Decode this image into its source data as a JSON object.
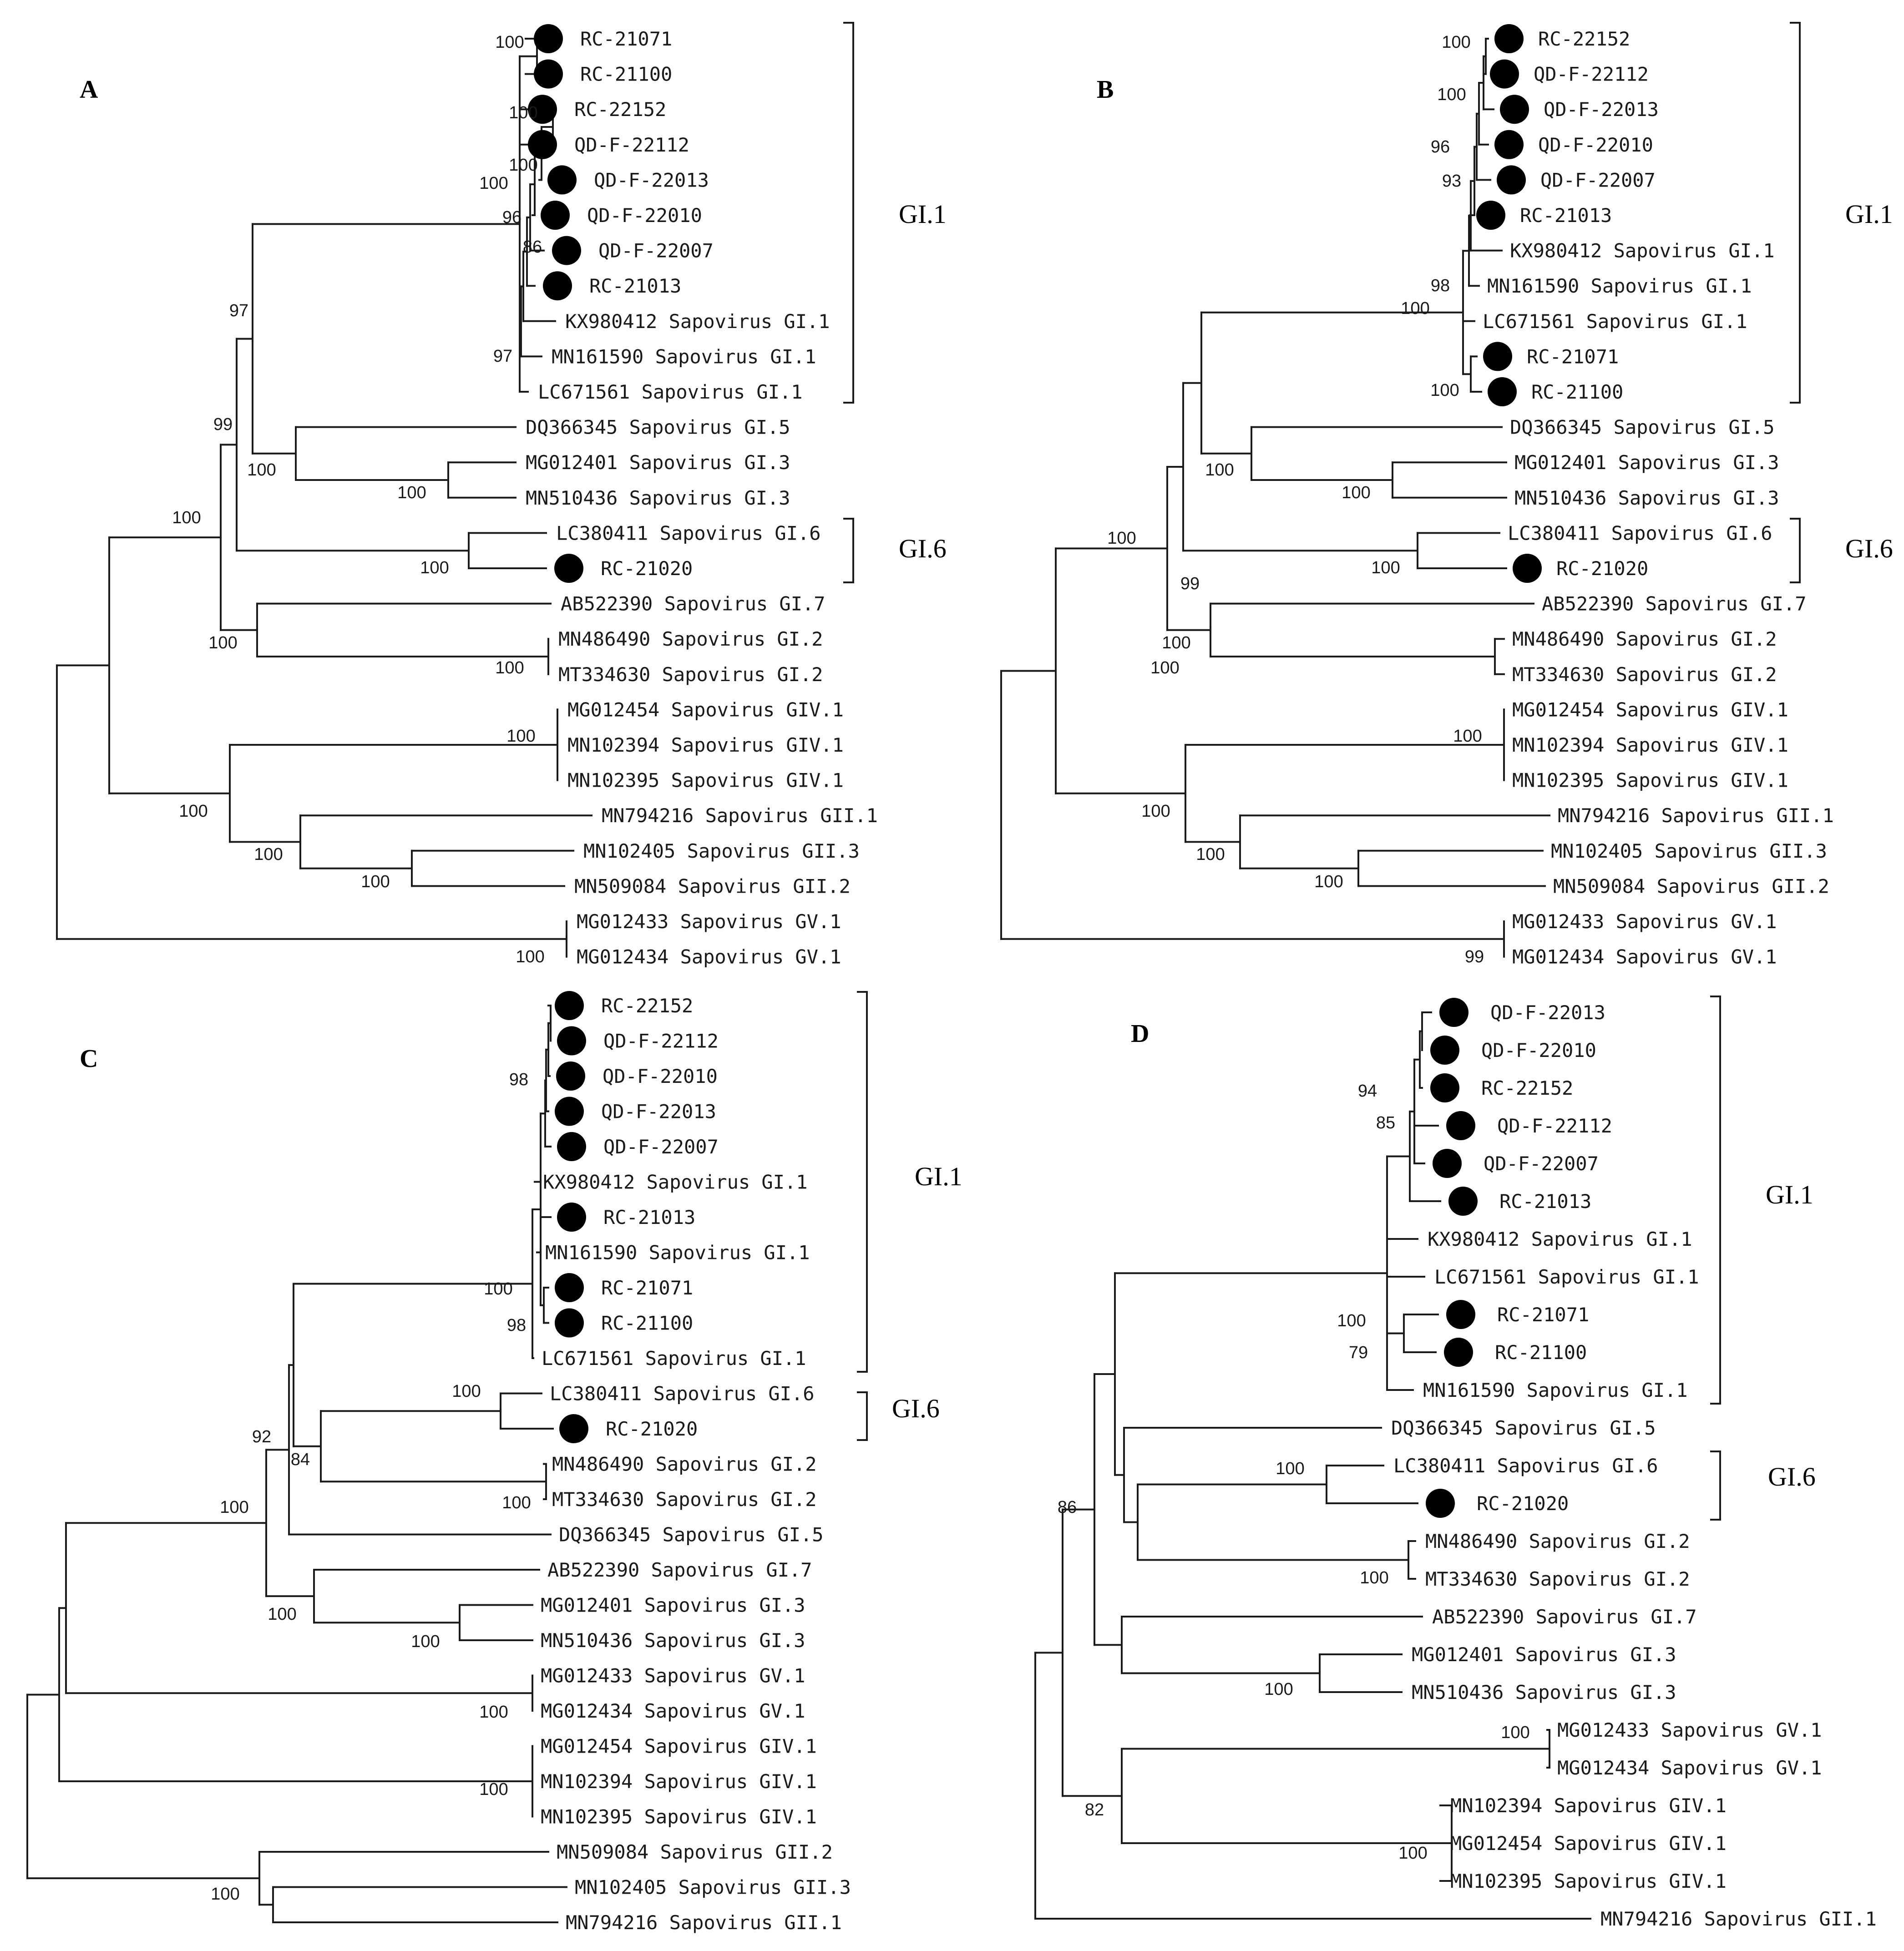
{
  "panels": [
    {
      "label": "A",
      "tips": [
        "RC-21071",
        "RC-21100",
        "RC-22152",
        "QD-F-22112",
        "QD-F-22013",
        "QD-F-22010",
        "QD-F-22007",
        "RC-21013",
        "KX980412 Sapovirus GI.1",
        "MN161590 Sapovirus GI.1",
        "LC671561 Sapovirus GI.1",
        "DQ366345 Sapovirus GI.5",
        "MG012401 Sapovirus GI.3",
        "MN510436 Sapovirus GI.3",
        "LC380411 Sapovirus GI.6",
        "RC-21020",
        "AB522390 Sapovirus GI.7",
        "MN486490 Sapovirus GI.2",
        "MT334630 Sapovirus GI.2",
        "MG012454 Sapovirus GIV.1",
        "MN102394 Sapovirus GIV.1",
        "MN102395 Sapovirus GIV.1",
        "MN794216 Sapovirus GII.1",
        "MN102405 Sapovirus GII.3",
        "MN509084 Sapovirus GII.2",
        "MG012433 Sapovirus GV.1",
        "MG012434 Sapovirus GV.1"
      ],
      "dotted_tips": [
        0,
        1,
        2,
        3,
        4,
        5,
        6,
        7,
        15
      ],
      "bootstraps": [
        "100",
        "100",
        "100",
        "100",
        "96",
        "86",
        "97",
        "97",
        "99",
        "100",
        "100",
        "100",
        "100",
        "100",
        "100",
        "100",
        "100",
        "100",
        "100",
        "100"
      ],
      "clades": [
        {
          "label": "GI.1"
        },
        {
          "label": "GI.6"
        }
      ]
    },
    {
      "label": "B",
      "tips": [
        "RC-22152",
        "QD-F-22112",
        "QD-F-22013",
        "QD-F-22010",
        "QD-F-22007",
        "RC-21013",
        "KX980412 Sapovirus GI.1",
        "MN161590 Sapovirus GI.1",
        "LC671561 Sapovirus GI.1",
        "RC-21071",
        "RC-21100",
        "DQ366345 Sapovirus GI.5",
        "MG012401 Sapovirus GI.3",
        "MN510436 Sapovirus GI.3",
        "LC380411 Sapovirus GI.6",
        "RC-21020",
        "AB522390 Sapovirus GI.7",
        "MN486490 Sapovirus GI.2",
        "MT334630 Sapovirus GI.2",
        "MG012454 Sapovirus GIV.1",
        "MN102394 Sapovirus GIV.1",
        "MN102395 Sapovirus GIV.1",
        "MN794216 Sapovirus GII.1",
        "MN102405 Sapovirus GII.3",
        "MN509084 Sapovirus GII.2",
        "MG012433 Sapovirus GV.1",
        "MG012434 Sapovirus GV.1"
      ],
      "dotted_tips": [
        0,
        1,
        2,
        3,
        4,
        5,
        9,
        10,
        15
      ],
      "bootstraps": [
        "100",
        "100",
        "96",
        "93",
        "98",
        "100",
        "100",
        "100",
        "99",
        "100",
        "100",
        "100",
        "100",
        "100",
        "100",
        "100",
        "100",
        "100",
        "99"
      ],
      "clades": [
        {
          "label": "GI.1"
        },
        {
          "label": "GI.6"
        }
      ]
    },
    {
      "label": "C",
      "tips": [
        "RC-22152",
        "QD-F-22112",
        "QD-F-22010",
        "QD-F-22013",
        "QD-F-22007",
        "KX980412 Sapovirus GI.1",
        "RC-21013",
        "MN161590 Sapovirus GI.1",
        "RC-21071",
        "RC-21100",
        "LC671561 Sapovirus GI.1",
        "LC380411 Sapovirus GI.6",
        "RC-21020",
        "MN486490 Sapovirus GI.2",
        "MT334630 Sapovirus GI.2",
        "DQ366345 Sapovirus GI.5",
        "AB522390 Sapovirus GI.7",
        "MG012401 Sapovirus GI.3",
        "MN510436 Sapovirus GI.3",
        "MG012433 Sapovirus GV.1",
        "MG012434 Sapovirus GV.1",
        "MG012454 Sapovirus GIV.1",
        "MN102394 Sapovirus GIV.1",
        "MN102395 Sapovirus GIV.1",
        "MN509084 Sapovirus GII.2",
        "MN102405 Sapovirus GII.3",
        "MN794216 Sapovirus GII.1"
      ],
      "dotted_tips": [
        0,
        1,
        2,
        3,
        4,
        6,
        8,
        9,
        12
      ],
      "bootstraps": [
        "98",
        "98",
        "100",
        "100",
        "100",
        "84",
        "92",
        "100",
        "100",
        "100",
        "100",
        "100",
        "100"
      ],
      "clades": [
        {
          "label": "GI.1"
        },
        {
          "label": "GI.6"
        }
      ]
    },
    {
      "label": "D",
      "tips": [
        "QD-F-22013",
        "QD-F-22010",
        "RC-22152",
        "QD-F-22112",
        "QD-F-22007",
        "RC-21013",
        "KX980412 Sapovirus GI.1",
        "LC671561 Sapovirus GI.1",
        "RC-21071",
        "RC-21100",
        "MN161590 Sapovirus GI.1",
        "DQ366345 Sapovirus GI.5",
        "LC380411 Sapovirus GI.6",
        "RC-21020",
        "MN486490 Sapovirus GI.2",
        "MT334630 Sapovirus GI.2",
        "AB522390 Sapovirus GI.7",
        "MG012401 Sapovirus GI.3",
        "MN510436 Sapovirus GI.3",
        "MG012433 Sapovirus GV.1",
        "MG012434 Sapovirus GV.1",
        "MN102394 Sapovirus GIV.1",
        "MG012454 Sapovirus GIV.1",
        "MN102395 Sapovirus GIV.1",
        "MN794216 Sapovirus GII.1"
      ],
      "dotted_tips": [
        0,
        1,
        2,
        3,
        4,
        5,
        8,
        9,
        13
      ],
      "bootstraps": [
        "94",
        "85",
        "79",
        "100",
        "100",
        "100",
        "100",
        "100",
        "100",
        "86",
        "82"
      ],
      "clades": [
        {
          "label": "GI.1"
        },
        {
          "label": "GI.6"
        }
      ]
    }
  ]
}
